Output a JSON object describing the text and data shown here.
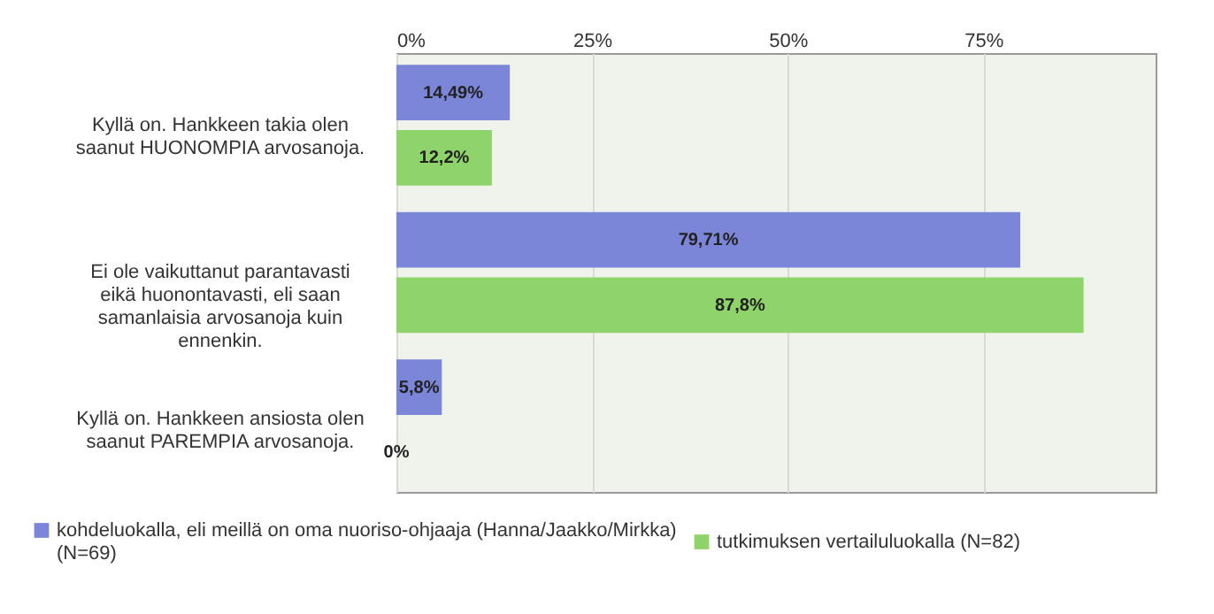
{
  "chart_data": {
    "type": "bar",
    "orientation": "horizontal",
    "categories": [
      "Kyllä on. Hankkeen takia olen saanut HUONOMPIA arvosanoja.",
      "Ei ole vaikuttanut parantavasti eikä huonontavasti, eli saan samanlaisia arvosanoja kuin ennenkin.",
      "Kyllä on. Hankkeen ansiosta olen saanut PAREMPIA arvosanoja."
    ],
    "series": [
      {
        "name": "kohdeluokalla, eli meillä on oma nuoriso-ohjaaja (Hanna/Jaakko/Mirkka) (N=69)",
        "color": "#7b86d8",
        "values": [
          14.49,
          79.71,
          5.8
        ],
        "value_labels": [
          "14,49%",
          "79,71%",
          "5,8%"
        ]
      },
      {
        "name": "tutkimuksen vertailuluokalla (N=82)",
        "color": "#8ed46a",
        "values": [
          12.2,
          87.8,
          0
        ],
        "value_labels": [
          "12,2%",
          "87,8%",
          "0%"
        ]
      }
    ],
    "xlim": [
      0,
      97
    ],
    "xticks": [
      {
        "value": 0,
        "label": "0%"
      },
      {
        "value": 25,
        "label": "25%"
      },
      {
        "value": 50,
        "label": "50%"
      },
      {
        "value": 75,
        "label": "75%"
      }
    ],
    "grid": "x",
    "legend": "bottom"
  }
}
